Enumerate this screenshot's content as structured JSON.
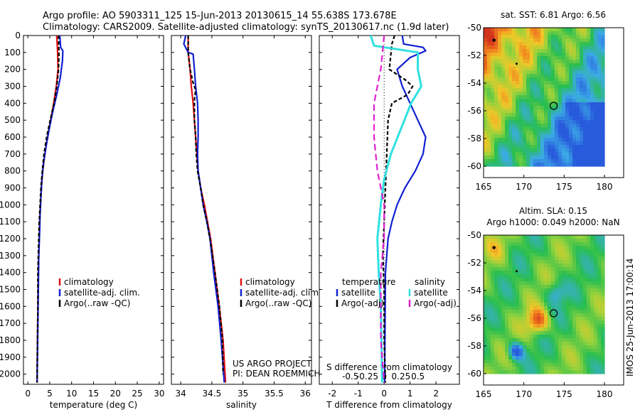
{
  "header": {
    "line1": "Argo profile: AO 5903311_125 15-Jun-2013 20130615_14 55.638S 173.678E",
    "line2": "Climatology: CARS2009. Satellite-adjusted climatology: synTS_20130617.nc (1.9d later)"
  },
  "colors": {
    "red": "#e01010",
    "blue": "#1020d0",
    "black": "#000000",
    "cyan": "#30e0e0",
    "magenta": "#e020d0"
  },
  "chart_data": [
    {
      "type": "line",
      "xlabel": "temperature (deg C)",
      "ylabel": "",
      "xlim": [
        -1,
        31
      ],
      "ylim": [
        2060,
        0
      ],
      "xticks": [
        "0",
        "5",
        "10",
        "15",
        "20",
        "25",
        "30"
      ],
      "yticks": [
        "0",
        "100",
        "200",
        "300",
        "400",
        "500",
        "600",
        "700",
        "800",
        "900",
        "1000",
        "1100",
        "1200",
        "1300",
        "1400",
        "1500",
        "1600",
        "1700",
        "1800",
        "1900",
        "2000"
      ],
      "legend": [
        "climatology",
        "satellite-adj. clim.",
        "Argo(..raw -QC)"
      ],
      "series": [
        {
          "name": "climatology",
          "color": "red",
          "dash": "none",
          "points": [
            [
              6.6,
              0
            ],
            [
              6.8,
              100
            ],
            [
              6.9,
              200
            ],
            [
              6.5,
              300
            ],
            [
              5.9,
              400
            ],
            [
              5.2,
              500
            ],
            [
              4.5,
              600
            ],
            [
              3.9,
              700
            ],
            [
              3.4,
              800
            ],
            [
              3.1,
              900
            ],
            [
              2.9,
              1000
            ],
            [
              2.7,
              1100
            ],
            [
              2.6,
              1200
            ],
            [
              2.4,
              1400
            ],
            [
              2.3,
              1600
            ],
            [
              2.2,
              1800
            ],
            [
              2.1,
              2050
            ]
          ]
        },
        {
          "name": "satellite-adj. clim.",
          "color": "blue",
          "dash": "none",
          "points": [
            [
              7.3,
              0
            ],
            [
              7.5,
              70
            ],
            [
              8.0,
              90
            ],
            [
              7.9,
              150
            ],
            [
              7.4,
              250
            ],
            [
              6.6,
              350
            ],
            [
              5.7,
              450
            ],
            [
              4.9,
              550
            ],
            [
              4.2,
              650
            ],
            [
              3.6,
              750
            ],
            [
              3.2,
              850
            ],
            [
              3.0,
              950
            ],
            [
              2.8,
              1050
            ],
            [
              2.7,
              1150
            ],
            [
              2.5,
              1300
            ],
            [
              2.4,
              1500
            ],
            [
              2.3,
              1700
            ],
            [
              2.2,
              1900
            ],
            [
              2.1,
              2050
            ]
          ]
        },
        {
          "name": "Argo(..raw -QC)",
          "color": "black",
          "dash": "5,3",
          "points": [
            [
              7.0,
              0
            ],
            [
              7.1,
              100
            ],
            [
              7.0,
              200
            ],
            [
              6.6,
              300
            ],
            [
              6.0,
              400
            ],
            [
              5.1,
              500
            ],
            [
              4.3,
              600
            ],
            [
              3.7,
              700
            ],
            [
              3.3,
              800
            ],
            [
              3.0,
              900
            ],
            [
              2.8,
              1000
            ],
            [
              2.6,
              1100
            ],
            [
              2.5,
              1200
            ],
            [
              2.3,
              1400
            ],
            [
              2.3,
              1600
            ],
            [
              2.2,
              1800
            ],
            [
              2.1,
              2050
            ]
          ]
        }
      ]
    },
    {
      "type": "line",
      "xlabel": "salinity",
      "xlim": [
        33.85,
        36.1
      ],
      "ylim": [
        2060,
        0
      ],
      "xticks": [
        "34",
        "34.5",
        "35",
        "35.5",
        "36"
      ],
      "legend": [
        "climatology",
        "satellite-adj. clim.",
        "Argo(..raw -QC)"
      ],
      "footer": [
        "US ARGO PROJECT",
        "PI: DEAN ROEMMICH"
      ],
      "series": [
        {
          "name": "climatology",
          "color": "red",
          "dash": "none",
          "points": [
            [
              34.12,
              0
            ],
            [
              34.12,
              100
            ],
            [
              34.15,
              200
            ],
            [
              34.17,
              300
            ],
            [
              34.2,
              400
            ],
            [
              34.22,
              500
            ],
            [
              34.24,
              600
            ],
            [
              34.26,
              700
            ],
            [
              34.28,
              800
            ],
            [
              34.32,
              900
            ],
            [
              34.38,
              1000
            ],
            [
              34.43,
              1100
            ],
            [
              34.48,
              1200
            ],
            [
              34.55,
              1400
            ],
            [
              34.62,
              1600
            ],
            [
              34.68,
              1800
            ],
            [
              34.72,
              2050
            ]
          ]
        },
        {
          "name": "satellite-adj. clim.",
          "color": "blue",
          "dash": "none",
          "points": [
            [
              34.08,
              0
            ],
            [
              34.05,
              50
            ],
            [
              34.12,
              100
            ],
            [
              34.2,
              110
            ],
            [
              34.22,
              200
            ],
            [
              34.24,
              300
            ],
            [
              34.27,
              400
            ],
            [
              34.28,
              500
            ],
            [
              34.28,
              600
            ],
            [
              34.27,
              700
            ],
            [
              34.28,
              800
            ],
            [
              34.32,
              900
            ],
            [
              34.36,
              1000
            ],
            [
              34.42,
              1100
            ],
            [
              34.47,
              1200
            ],
            [
              34.53,
              1400
            ],
            [
              34.6,
              1600
            ],
            [
              34.65,
              1800
            ],
            [
              34.7,
              2050
            ]
          ]
        },
        {
          "name": "Argo(..raw -QC)",
          "color": "black",
          "dash": "5,3",
          "points": [
            [
              34.12,
              0
            ],
            [
              34.12,
              60
            ],
            [
              34.12,
              100
            ],
            [
              34.15,
              200
            ],
            [
              34.2,
              280
            ],
            [
              34.24,
              320
            ],
            [
              34.22,
              380
            ],
            [
              34.22,
              500
            ],
            [
              34.24,
              600
            ],
            [
              34.25,
              700
            ],
            [
              34.27,
              800
            ],
            [
              34.32,
              900
            ],
            [
              34.36,
              1000
            ],
            [
              34.42,
              1100
            ],
            [
              34.47,
              1200
            ],
            [
              34.55,
              1400
            ],
            [
              34.62,
              1600
            ],
            [
              34.67,
              1800
            ],
            [
              34.68,
              2000
            ]
          ]
        }
      ]
    },
    {
      "type": "line",
      "xlabel": "T difference from climatology",
      "xlabel2": "S difference from climatology",
      "xlim": [
        -2.5,
        2.9
      ],
      "ylim": [
        2060,
        0
      ],
      "xticks": [
        "-2",
        "-1",
        "0",
        "1",
        "2"
      ],
      "xticks2": [
        "-0.5",
        "-0.25",
        "0",
        "0.25",
        "0.5"
      ],
      "legend_left_title": "temperature",
      "legend_right_title": "salinity",
      "legend_left": [
        "satellite",
        "Argo(-adj)"
      ],
      "legend_right": [
        "satellite",
        "Argo(-adj)"
      ],
      "series": [
        {
          "name": "satellite",
          "group": "temperature",
          "color": "blue",
          "dash": "none",
          "points": [
            [
              0.7,
              0
            ],
            [
              0.75,
              50
            ],
            [
              1.5,
              70
            ],
            [
              1.6,
              90
            ],
            [
              1.0,
              130
            ],
            [
              0.5,
              200
            ],
            [
              0.7,
              300
            ],
            [
              1.0,
              400
            ],
            [
              1.3,
              500
            ],
            [
              1.6,
              600
            ],
            [
              1.5,
              700
            ],
            [
              1.2,
              800
            ],
            [
              0.8,
              900
            ],
            [
              0.5,
              1000
            ],
            [
              0.3,
              1100
            ],
            [
              0.15,
              1200
            ],
            [
              0.05,
              1400
            ],
            [
              0.03,
              1800
            ],
            [
              0.02,
              2050
            ]
          ]
        },
        {
          "name": "Argo(-adj)",
          "group": "temperature",
          "color": "black",
          "dash": "5,3",
          "points": [
            [
              0.4,
              0
            ],
            [
              0.3,
              50
            ],
            [
              0.2,
              200
            ],
            [
              0.8,
              260
            ],
            [
              1.1,
              300
            ],
            [
              0.9,
              350
            ],
            [
              0.3,
              400
            ],
            [
              0.15,
              500
            ],
            [
              0.1,
              700
            ],
            [
              0.05,
              900
            ],
            [
              0.0,
              1100
            ],
            [
              -0.05,
              1300
            ],
            [
              0.0,
              1500
            ],
            [
              0.0,
              1800
            ],
            [
              0.05,
              2050
            ]
          ]
        },
        {
          "name": "satellite",
          "group": "salinity",
          "color": "cyan",
          "dash": "none",
          "points": [
            [
              -0.2,
              0
            ],
            [
              -0.15,
              60
            ],
            [
              0.5,
              100
            ],
            [
              0.5,
              200
            ],
            [
              0.55,
              300
            ],
            [
              0.4,
              400
            ],
            [
              0.3,
              500
            ],
            [
              0.2,
              600
            ],
            [
              0.1,
              700
            ],
            [
              0.0,
              850
            ],
            [
              -0.05,
              1000
            ],
            [
              -0.1,
              1200
            ],
            [
              -0.08,
              1400
            ],
            [
              -0.05,
              1600
            ],
            [
              -0.04,
              1800
            ],
            [
              -0.03,
              2050
            ]
          ]
        },
        {
          "name": "Argo(-adj)",
          "group": "salinity",
          "color": "magenta",
          "dash": "9,5",
          "points": [
            [
              0.0,
              0
            ],
            [
              -0.05,
              200
            ],
            [
              -0.1,
              300
            ],
            [
              -0.15,
              400
            ],
            [
              -0.15,
              600
            ],
            [
              -0.1,
              800
            ],
            [
              -0.05,
              900
            ],
            [
              0.0,
              1000
            ],
            [
              0.0,
              1200
            ],
            [
              -0.05,
              1400
            ],
            [
              -0.05,
              1800
            ],
            [
              0.0,
              2050
            ]
          ]
        }
      ]
    },
    {
      "type": "heatmap",
      "title": "sat. SST: 6.81  Argo: 6.56",
      "xlim": [
        165,
        180
      ],
      "ylim": [
        -60,
        -50
      ],
      "xticks": [
        "165",
        "170",
        "175",
        "180"
      ],
      "yticks": [
        "-50",
        "-52",
        "-54",
        "-56",
        "-58",
        "-60"
      ],
      "float_marker": [
        173.7,
        -55.64
      ],
      "track_points": [
        [
          166.3,
          -50.9
        ],
        [
          169.1,
          -52.6
        ]
      ]
    },
    {
      "type": "heatmap",
      "title": "Altim. SLA: 0.15",
      "subtitle": "Argo h1000: 0.049 h2000: NaN",
      "xlim": [
        165,
        180
      ],
      "ylim": [
        -60,
        -50
      ],
      "xticks": [
        "165",
        "170",
        "175",
        "180"
      ],
      "yticks": [
        "-50",
        "-52",
        "-54",
        "-56",
        "-58",
        "-60"
      ],
      "float_marker": [
        173.7,
        -55.64
      ],
      "track_points": [
        [
          166.3,
          -50.9
        ],
        [
          169.1,
          -52.6
        ]
      ]
    }
  ],
  "footer": {
    "timestamp": "IMOS 25-Jun-2013 17:00:14"
  }
}
